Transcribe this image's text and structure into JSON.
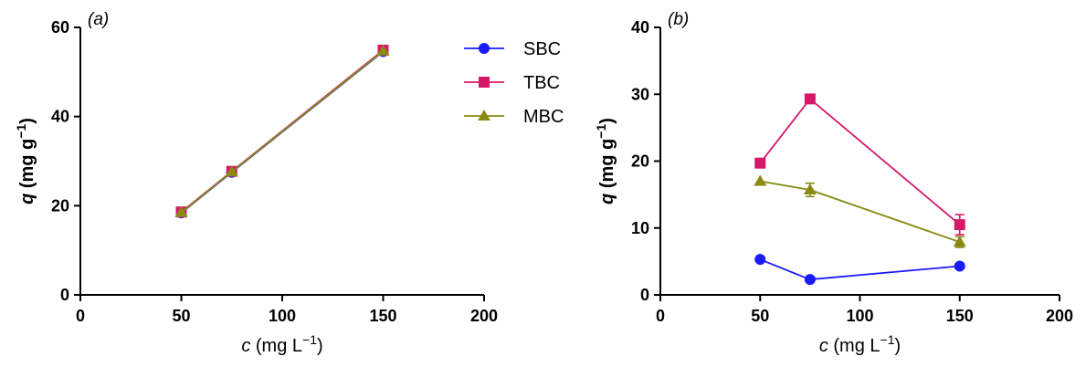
{
  "colors": {
    "SBC": "#1a1aff",
    "TBC": "#d6186b",
    "MBC": "#8a8a12"
  },
  "legend": [
    "SBC",
    "TBC",
    "MBC"
  ],
  "chart_data": [
    {
      "type": "line",
      "panel_label": "(a)",
      "xlabel_italic": "c",
      "xlabel_unit": " (mg L",
      "xlabel_sup": "−1",
      "xlabel_close": ")",
      "ylabel_italic": "q",
      "ylabel_unit": " (mg g",
      "ylabel_sup": "−1",
      "ylabel_close": ")",
      "xlim": [
        0,
        200
      ],
      "ylim": [
        0,
        60
      ],
      "xticks": [
        "0",
        "50",
        "100",
        "150",
        "200"
      ],
      "yticks": [
        "0",
        "20",
        "40",
        "60"
      ],
      "x": [
        50,
        75,
        150
      ],
      "series": [
        {
          "name": "SBC",
          "marker": "circle",
          "values": [
            18.4,
            27.5,
            54.6
          ]
        },
        {
          "name": "TBC",
          "marker": "square",
          "values": [
            18.6,
            27.7,
            54.9
          ]
        },
        {
          "name": "MBC",
          "marker": "triangle",
          "values": [
            18.5,
            27.6,
            54.7
          ]
        }
      ]
    },
    {
      "type": "line",
      "panel_label": "(b)",
      "xlabel_italic": "c",
      "xlabel_unit": " (mg L",
      "xlabel_sup": "−1",
      "xlabel_close": ")",
      "ylabel_italic": "q",
      "ylabel_unit": " (mg g",
      "ylabel_sup": "−1",
      "ylabel_close": ")",
      "xlim": [
        0,
        200
      ],
      "ylim": [
        0,
        40
      ],
      "xticks": [
        "0",
        "50",
        "100",
        "150",
        "200"
      ],
      "yticks": [
        "0",
        "10",
        "20",
        "30",
        "40"
      ],
      "x": [
        50,
        75,
        150
      ],
      "series": [
        {
          "name": "SBC",
          "marker": "circle",
          "values": [
            5.3,
            2.3,
            4.3
          ]
        },
        {
          "name": "TBC",
          "marker": "square",
          "values": [
            19.7,
            29.3,
            10.5
          ],
          "errors": [
            0,
            0,
            1.5
          ]
        },
        {
          "name": "MBC",
          "marker": "triangle",
          "values": [
            17.0,
            15.7,
            7.9
          ],
          "errors": [
            0,
            1.0,
            0.8
          ]
        }
      ]
    }
  ]
}
